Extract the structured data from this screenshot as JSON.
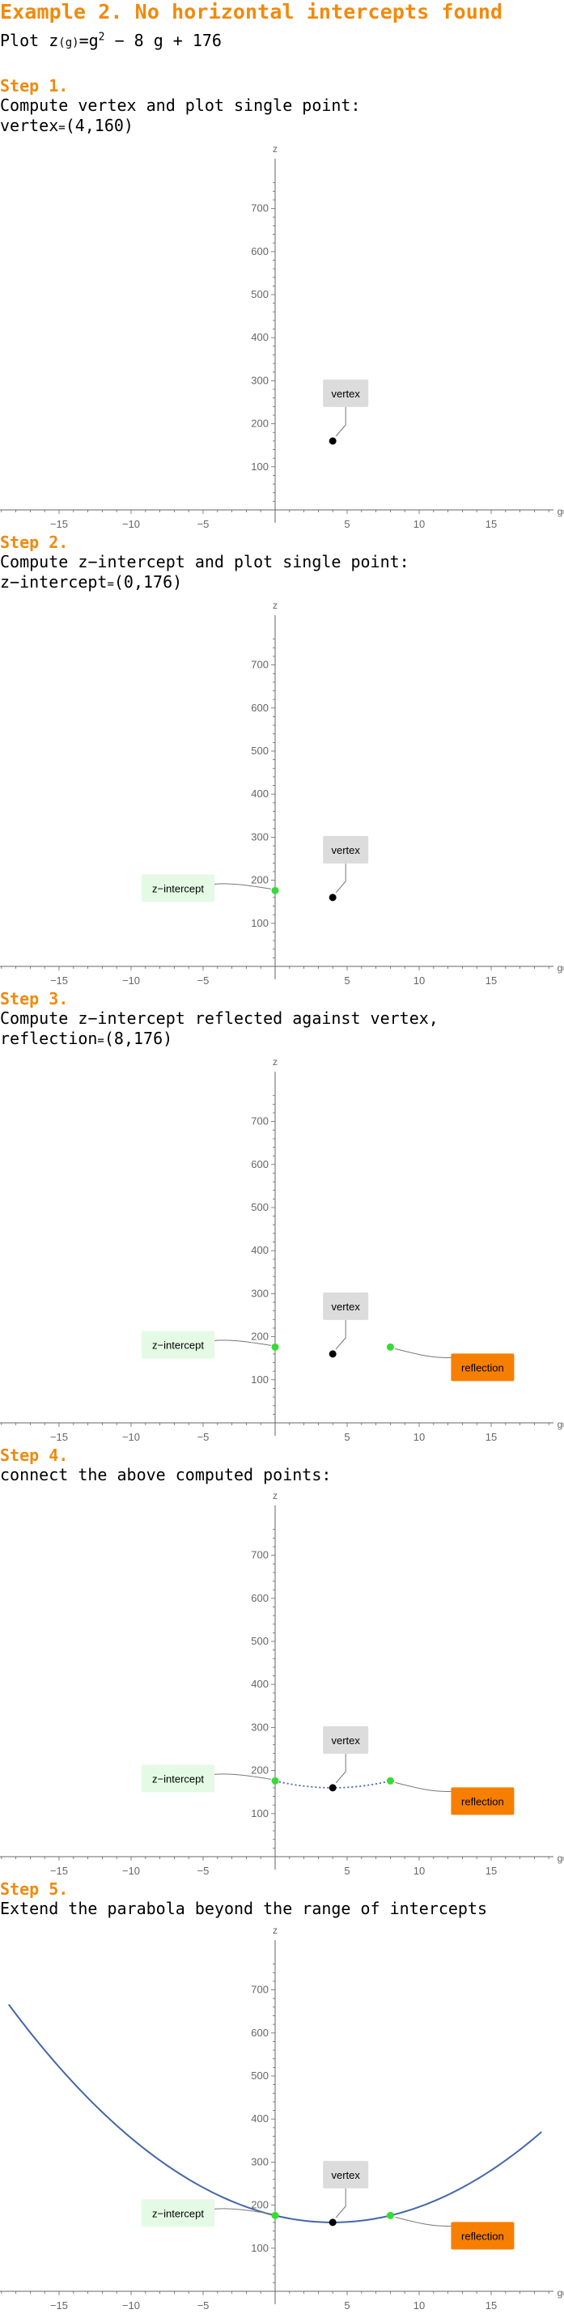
{
  "title": "Example 2. No horizontal intercepts found",
  "plot_prefix": "Plot ",
  "function_name": "z",
  "function_var": "(g)",
  "function_eq": "=g",
  "function_exp": "2",
  "function_rest": " − 8 g + 176",
  "steps": [
    {
      "label": "Step 1.",
      "line1": "Compute vertex and plot single point:",
      "line2_name": "vertex",
      "line2_eq": "=",
      "line2_value": "(4,160)"
    },
    {
      "label": "Step 2.",
      "line1": "Compute z−intercept and plot single point:",
      "line2_name": "z−intercept",
      "line2_eq": "=",
      "line2_value": "(0,176)"
    },
    {
      "label": "Step 3.",
      "line1": "Compute z−intercept reflected against vertex,",
      "line2_name": "reflection",
      "line2_eq": "=",
      "line2_value": "(8,176)"
    },
    {
      "label": "Step 4.",
      "line1": "connect the above computed points:",
      "line2_name": "",
      "line2_eq": "",
      "line2_value": ""
    },
    {
      "label": "Step 5.",
      "line1": "Extend the parabola beyond the range of intercepts",
      "line2_name": "",
      "line2_eq": "",
      "line2_value": ""
    }
  ],
  "colors": {
    "accent": "#f08a0c",
    "vertex_point": "#000000",
    "intercept_point": "#33dd33",
    "curve": "#4466aa",
    "vertex_label_bg": "#dcdcdc",
    "intercept_label_bg": "#e4fae4",
    "reflection_label_bg": "#f77f00",
    "axis": "#666666"
  },
  "chart_data": [
    {
      "type": "scatter",
      "xlabel": "g",
      "ylabel": "z",
      "xlim": [
        -19,
        20
      ],
      "ylim": [
        -30,
        760
      ],
      "xticks": [
        -15,
        -10,
        -5,
        5,
        10,
        15
      ],
      "yticks": [
        100,
        200,
        300,
        400,
        500,
        600,
        700
      ],
      "points": [
        {
          "name": "vertex",
          "x": 4,
          "y": 160
        }
      ],
      "curve": "none",
      "callouts": [
        {
          "text": "vertex",
          "style": "vertex",
          "point": 0
        }
      ]
    },
    {
      "type": "scatter",
      "xlabel": "g",
      "ylabel": "z",
      "xlim": [
        -19,
        20
      ],
      "ylim": [
        -30,
        760
      ],
      "xticks": [
        -15,
        -10,
        -5,
        5,
        10,
        15
      ],
      "yticks": [
        100,
        200,
        300,
        400,
        500,
        600,
        700
      ],
      "points": [
        {
          "name": "vertex",
          "x": 4,
          "y": 160
        },
        {
          "name": "z-intercept",
          "x": 0,
          "y": 176
        }
      ],
      "curve": "none",
      "callouts": [
        {
          "text": "vertex",
          "style": "vertex",
          "point": 0
        },
        {
          "text": "z−intercept",
          "style": "intercept",
          "point": 1
        }
      ]
    },
    {
      "type": "scatter",
      "xlabel": "g",
      "ylabel": "z",
      "xlim": [
        -19,
        20
      ],
      "ylim": [
        -30,
        760
      ],
      "xticks": [
        -15,
        -10,
        -5,
        5,
        10,
        15
      ],
      "yticks": [
        100,
        200,
        300,
        400,
        500,
        600,
        700
      ],
      "points": [
        {
          "name": "vertex",
          "x": 4,
          "y": 160
        },
        {
          "name": "z-intercept",
          "x": 0,
          "y": 176
        },
        {
          "name": "reflection",
          "x": 8,
          "y": 176
        }
      ],
      "curve": "none",
      "callouts": [
        {
          "text": "vertex",
          "style": "vertex",
          "point": 0
        },
        {
          "text": "z−intercept",
          "style": "intercept",
          "point": 1
        },
        {
          "text": "reflection",
          "style": "reflection",
          "point": 2
        }
      ]
    },
    {
      "type": "line",
      "xlabel": "g",
      "ylabel": "z",
      "xlim": [
        -19,
        20
      ],
      "ylim": [
        -30,
        760
      ],
      "xticks": [
        -15,
        -10,
        -5,
        5,
        10,
        15
      ],
      "yticks": [
        100,
        200,
        300,
        400,
        500,
        600,
        700
      ],
      "points": [
        {
          "name": "vertex",
          "x": 4,
          "y": 160
        },
        {
          "name": "z-intercept",
          "x": 0,
          "y": 176
        },
        {
          "name": "reflection",
          "x": 8,
          "y": 176
        }
      ],
      "curve": "dotted",
      "curve_range": [
        0,
        8
      ],
      "function": {
        "a": 1,
        "b": -8,
        "c": 176
      },
      "callouts": [
        {
          "text": "vertex",
          "style": "vertex",
          "point": 0
        },
        {
          "text": "z−intercept",
          "style": "intercept",
          "point": 1
        },
        {
          "text": "reflection",
          "style": "reflection",
          "point": 2
        }
      ]
    },
    {
      "type": "line",
      "xlabel": "g",
      "ylabel": "z",
      "xlim": [
        -19,
        20
      ],
      "ylim": [
        -30,
        760
      ],
      "xticks": [
        -15,
        -10,
        -5,
        5,
        10,
        15
      ],
      "yticks": [
        100,
        200,
        300,
        400,
        500,
        600,
        700
      ],
      "points": [
        {
          "name": "vertex",
          "x": 4,
          "y": 160
        },
        {
          "name": "z-intercept",
          "x": 0,
          "y": 176
        },
        {
          "name": "reflection",
          "x": 8,
          "y": 176
        }
      ],
      "curve": "solid",
      "curve_range": [
        -18.5,
        18.5
      ],
      "function": {
        "a": 1,
        "b": -8,
        "c": 176
      },
      "callouts": [
        {
          "text": "vertex",
          "style": "vertex",
          "point": 0
        },
        {
          "text": "z−intercept",
          "style": "intercept",
          "point": 1
        },
        {
          "text": "reflection",
          "style": "reflection",
          "point": 2
        }
      ]
    }
  ]
}
